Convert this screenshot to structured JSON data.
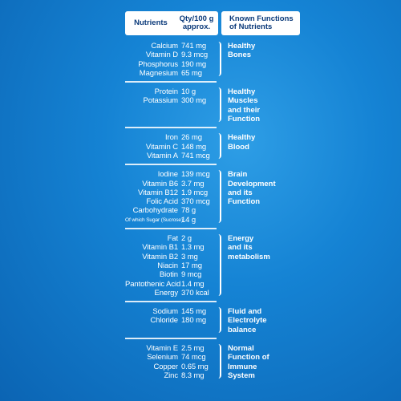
{
  "header": {
    "nutrients": "Nutrients",
    "qty_line1": "Qty/100 g",
    "qty_line2": "approx.",
    "functions_line1": "Known Functions",
    "functions_line2": "of Nutrients"
  },
  "groups": [
    {
      "function": [
        "Healthy",
        "Bones"
      ],
      "rows": [
        {
          "name": "Calcium",
          "qty": "741 mg"
        },
        {
          "name": "Vitamin D",
          "qty": "9.3 mcg"
        },
        {
          "name": "Phosphorus",
          "qty": "190 mg"
        },
        {
          "name": "Magnesium",
          "qty": "65 mg"
        }
      ]
    },
    {
      "function": [
        "Healthy",
        "Muscles",
        "and their",
        "Function"
      ],
      "rows": [
        {
          "name": "Protein",
          "qty": "10 g"
        },
        {
          "name": "Potassium",
          "qty": "300 mg"
        }
      ]
    },
    {
      "function": [
        "Healthy",
        "Blood"
      ],
      "rows": [
        {
          "name": "Iron",
          "qty": "26 mg"
        },
        {
          "name": "Vitamin C",
          "qty": "148 mg"
        },
        {
          "name": "Vitamin A",
          "qty": "741 mcg"
        }
      ]
    },
    {
      "function": [
        "Brain",
        "Development",
        "and its",
        "Function"
      ],
      "rows": [
        {
          "name": "Iodine",
          "qty": "139 mcg"
        },
        {
          "name": "Vitamin B6",
          "qty": "3.7 mg"
        },
        {
          "name": "Vitamin B12",
          "qty": "1.9 mcg"
        },
        {
          "name": "Folic Acid",
          "qty": "370 mcg"
        },
        {
          "name": "Carbohydrate",
          "qty": "78 g"
        },
        {
          "name": "Of which Sugar (Sucrose)",
          "qty": "14 g",
          "small": true
        }
      ]
    },
    {
      "function": [
        "Energy",
        "and its",
        "metabolism"
      ],
      "rows": [
        {
          "name": "Fat",
          "qty": "2 g"
        },
        {
          "name": "Vitamin B1",
          "qty": "1.3 mg"
        },
        {
          "name": "Vitamin B2",
          "qty": "3 mg"
        },
        {
          "name": "Niacin",
          "qty": "17 mg"
        },
        {
          "name": "Biotin",
          "qty": "9 mcg"
        },
        {
          "name": "Pantothenic Acid",
          "qty": "1.4 mg"
        },
        {
          "name": "Energy",
          "qty": "370 kcal"
        }
      ]
    },
    {
      "function": [
        "Fluid and",
        "Electrolyte",
        "balance"
      ],
      "rows": [
        {
          "name": "Sodium",
          "qty": "145 mg"
        },
        {
          "name": "Chloride",
          "qty": "180 mg"
        }
      ]
    },
    {
      "function": [
        "Normal",
        "Function of",
        "Immune",
        "System"
      ],
      "rows": [
        {
          "name": "Vitamin E",
          "qty": "2.5 mg"
        },
        {
          "name": "Selenium",
          "qty": "74 mcg"
        },
        {
          "name": "Copper",
          "qty": "0.65 mg"
        },
        {
          "name": "Zinc",
          "qty": "8.3 mg"
        }
      ]
    }
  ]
}
